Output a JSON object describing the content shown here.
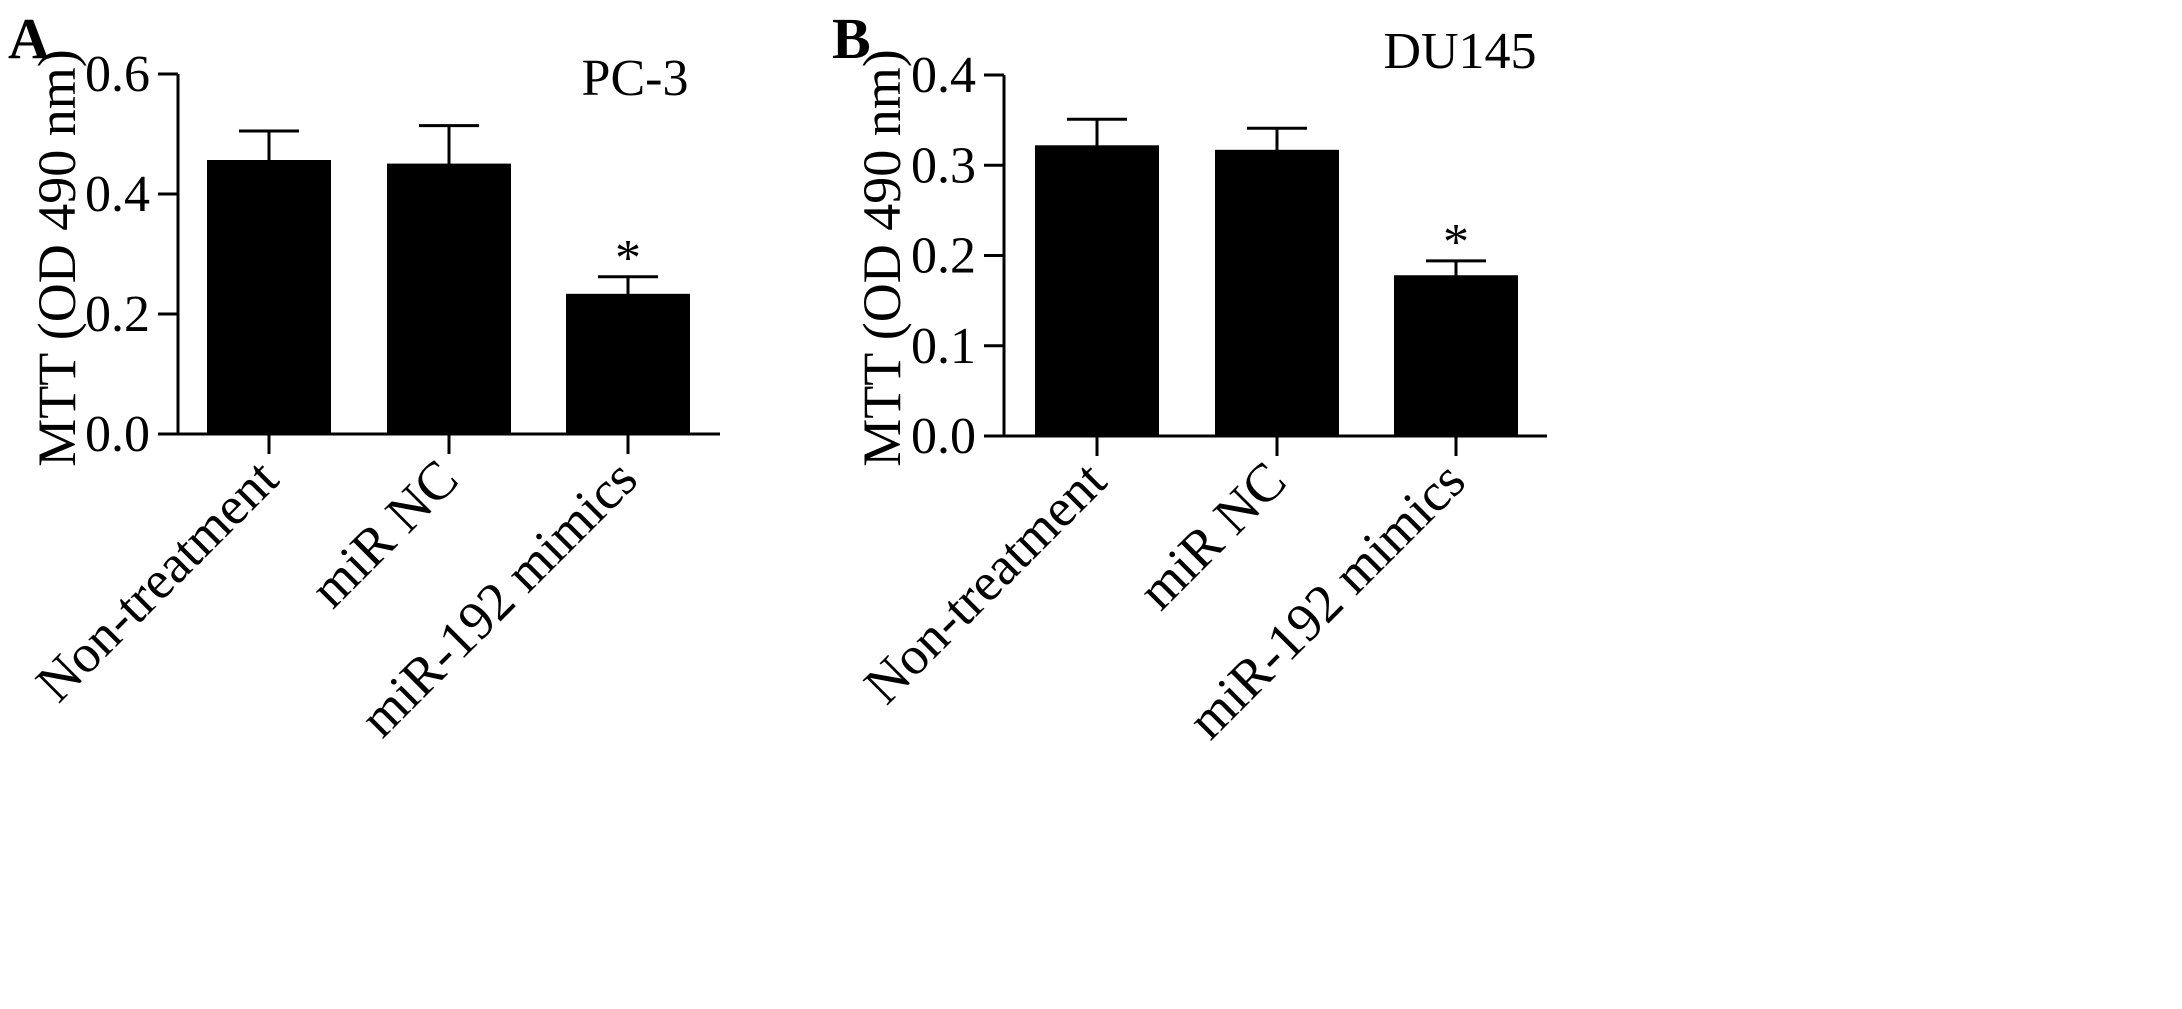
{
  "figure": {
    "background": "#ffffff",
    "ink_color": "#000000"
  },
  "chart_data": [
    {
      "type": "bar",
      "panel_label": "A",
      "title": "PC-3",
      "xlabel": "",
      "ylabel": "MTT (OD 490 nm)",
      "categories": [
        "Non-treatment",
        "miR NC",
        "miR-192 mimics"
      ],
      "values": [
        0.455,
        0.449,
        0.232
      ],
      "errors": [
        0.05,
        0.065,
        0.03
      ],
      "significance": [
        "",
        "",
        "*"
      ],
      "ylim": [
        0,
        0.6
      ],
      "yticks": [
        "0.0",
        "0.2",
        "0.4",
        "0.6"
      ],
      "grid": false,
      "bar_color": "#000000"
    },
    {
      "type": "bar",
      "panel_label": "B",
      "title": "DU145",
      "xlabel": "",
      "ylabel": "MTT (OD 490 nm)",
      "categories": [
        "Non-treatment",
        "miR NC",
        "miR-192 mimics"
      ],
      "values": [
        0.321,
        0.316,
        0.177
      ],
      "errors": [
        0.03,
        0.025,
        0.017
      ],
      "significance": [
        "",
        "",
        "*"
      ],
      "ylim": [
        0,
        0.4
      ],
      "yticks": [
        "0.0",
        "0.1",
        "0.2",
        "0.3",
        "0.4"
      ],
      "grid": false,
      "bar_color": "#000000"
    }
  ]
}
